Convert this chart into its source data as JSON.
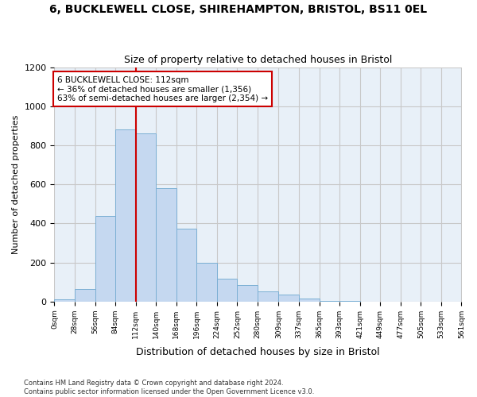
{
  "title1": "6, BUCKLEWELL CLOSE, SHIREHAMPTON, BRISTOL, BS11 0EL",
  "title2": "Size of property relative to detached houses in Bristol",
  "xlabel": "Distribution of detached houses by size in Bristol",
  "ylabel": "Number of detached properties",
  "bar_color": "#c5d8f0",
  "bar_edge_color": "#7bafd4",
  "vline_color": "#cc0000",
  "vline_x": 112,
  "annotation_line1": "6 BUCKLEWELL CLOSE: 112sqm",
  "annotation_line2": "← 36% of detached houses are smaller (1,356)",
  "annotation_line3": "63% of semi-detached houses are larger (2,354) →",
  "annotation_box_color": "#ffffff",
  "annotation_box_edge_color": "#cc0000",
  "bin_edges": [
    0,
    28,
    56,
    84,
    112,
    140,
    168,
    196,
    224,
    252,
    280,
    309,
    337,
    365,
    393,
    421,
    449,
    477,
    505,
    533,
    561
  ],
  "heights": [
    10,
    65,
    440,
    880,
    860,
    580,
    375,
    200,
    115,
    85,
    50,
    35,
    15,
    5,
    2,
    1,
    0,
    0,
    0,
    0
  ],
  "bg_color": "#ffffff",
  "plot_bg_color": "#e8f0f8",
  "grid_color": "#c8c8c8",
  "ylim": [
    0,
    1200
  ],
  "yticks": [
    0,
    200,
    400,
    600,
    800,
    1000,
    1200
  ],
  "footer1": "Contains HM Land Registry data © Crown copyright and database right 2024.",
  "footer2": "Contains public sector information licensed under the Open Government Licence v3.0."
}
